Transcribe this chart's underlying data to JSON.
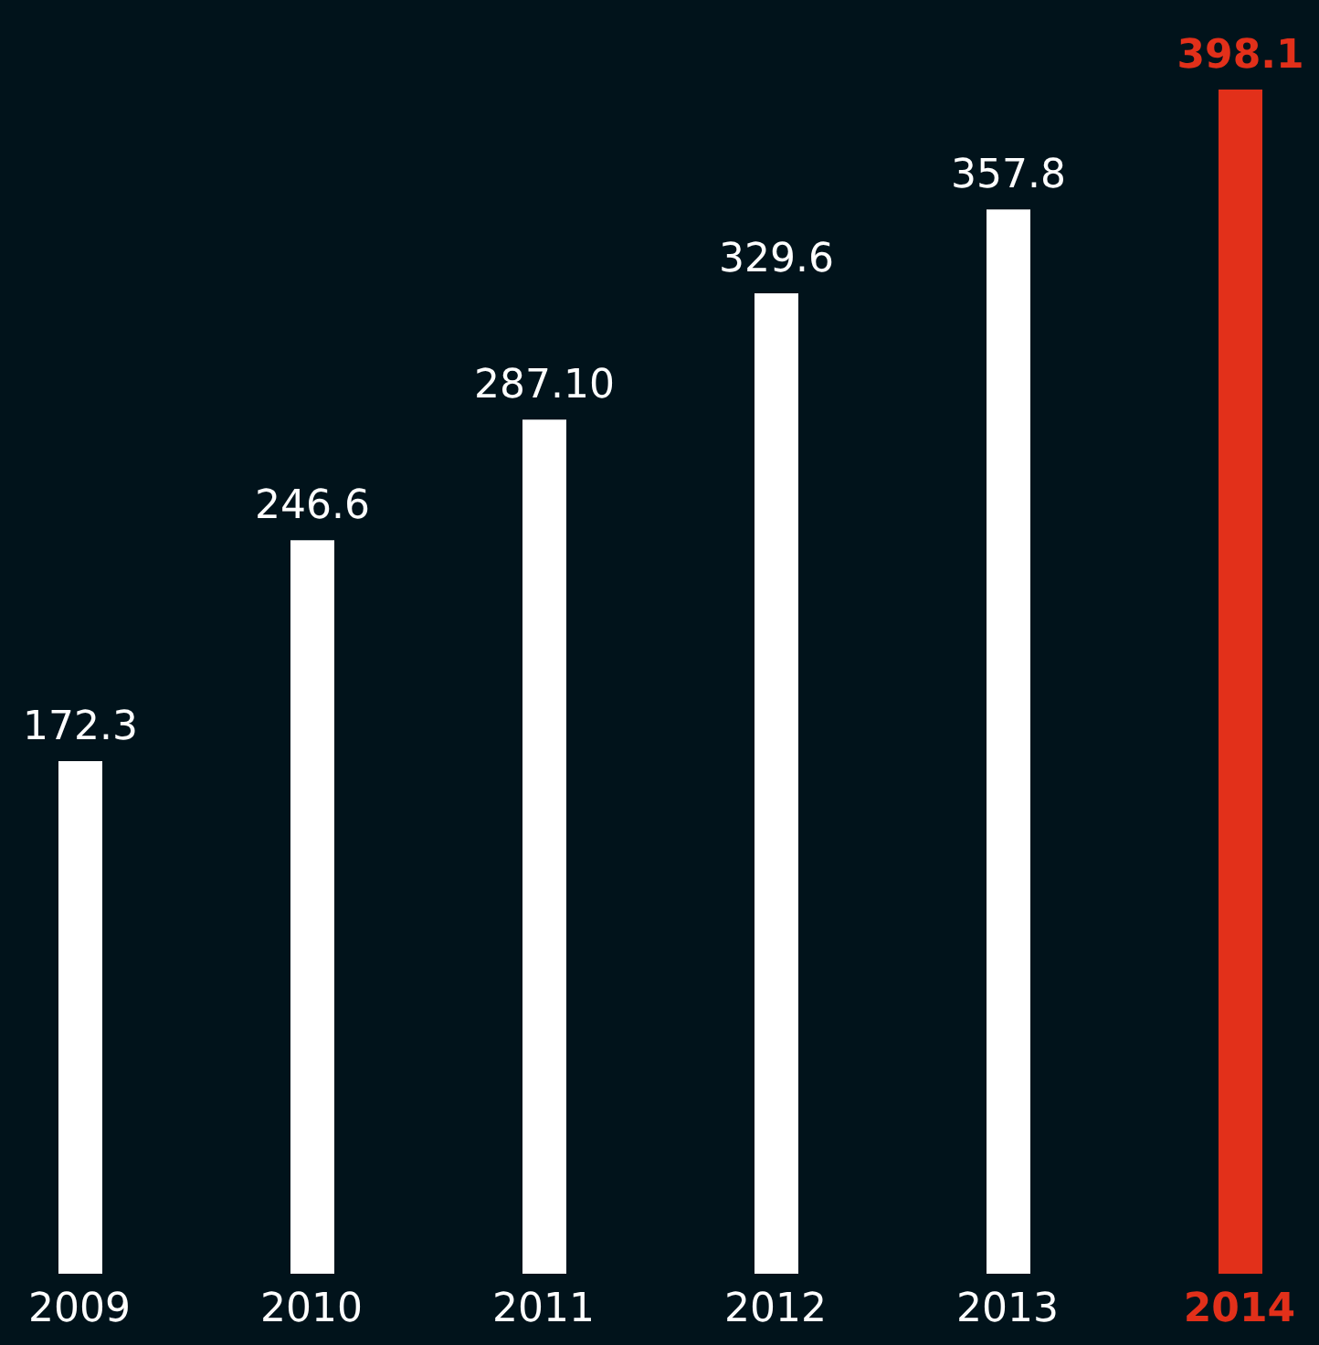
{
  "chart_data": {
    "type": "bar",
    "categories": [
      "2009",
      "2010",
      "2011",
      "2012",
      "2013",
      "2014"
    ],
    "values": [
      172.3,
      246.6,
      287.1,
      329.6,
      357.8,
      398.1
    ],
    "value_labels": [
      "172.3",
      "246.6",
      "287.10",
      "329.6",
      "357.8",
      "398.1"
    ],
    "colors": [
      "#ffffff",
      "#ffffff",
      "#ffffff",
      "#ffffff",
      "#ffffff",
      "#e2301a"
    ],
    "grid": false,
    "legend": false
  }
}
